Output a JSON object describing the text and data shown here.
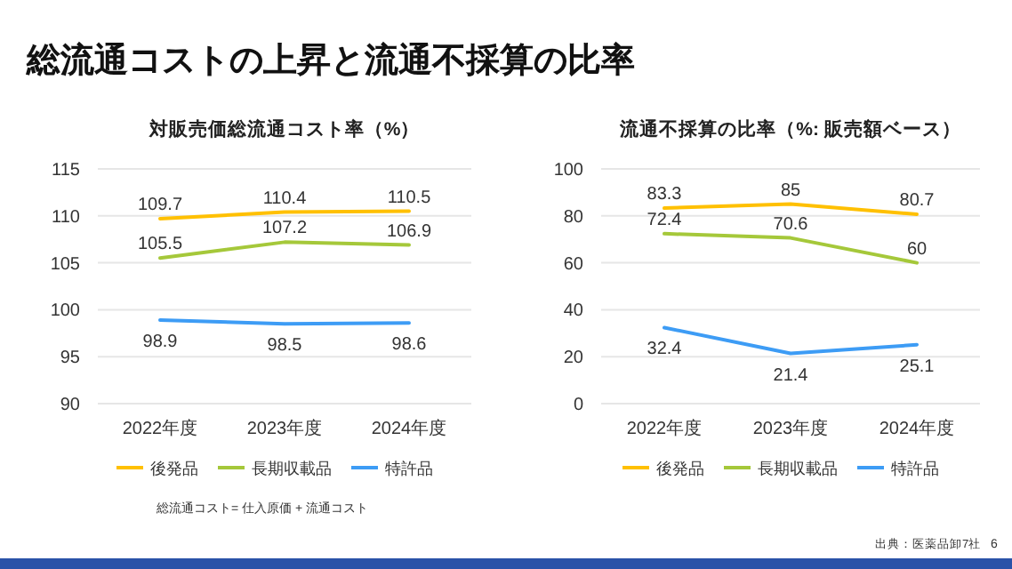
{
  "chart_data": [
    {
      "type": "line",
      "title": "対販売価総流通コスト率（%）",
      "categories": [
        "2022年度",
        "2023年度",
        "2024年度"
      ],
      "series": [
        {
          "name": "後発品",
          "color": "#ffc000",
          "values": [
            109.7,
            110.4,
            110.5
          ]
        },
        {
          "name": "長期収載品",
          "color": "#a5c83a",
          "values": [
            105.5,
            107.2,
            106.9
          ]
        },
        {
          "name": "特許品",
          "color": "#3d9cf5",
          "values": [
            98.9,
            98.5,
            98.6
          ]
        }
      ],
      "ylim": [
        90,
        115
      ],
      "yticks": [
        90,
        95,
        100,
        105,
        110,
        115
      ],
      "grid": "y",
      "legend": "bottom",
      "data_labels": true,
      "marker": "none",
      "annotations": [
        "総流通コストの上昇と流通不採算の比率",
        "総流通コスト= 仕入原価 + 流通コスト",
        "出典：医薬品卸7社",
        "6"
      ]
    },
    {
      "type": "line",
      "title": "流通不採算の比率（%: 販売額ベース）",
      "categories": [
        "2022年度",
        "2023年度",
        "2024年度"
      ],
      "series": [
        {
          "name": "後発品",
          "color": "#ffc000",
          "values": [
            83.3,
            85,
            80.7
          ]
        },
        {
          "name": "長期収載品",
          "color": "#a5c83a",
          "values": [
            72.4,
            70.6,
            60
          ]
        },
        {
          "name": "特許品",
          "color": "#3d9cf5",
          "values": [
            32.4,
            21.4,
            25.1
          ]
        }
      ],
      "ylim": [
        0,
        100
      ],
      "yticks": [
        0,
        20,
        40,
        60,
        80,
        100
      ],
      "grid": "y",
      "legend": "bottom",
      "data_labels": true,
      "marker": "none"
    }
  ]
}
